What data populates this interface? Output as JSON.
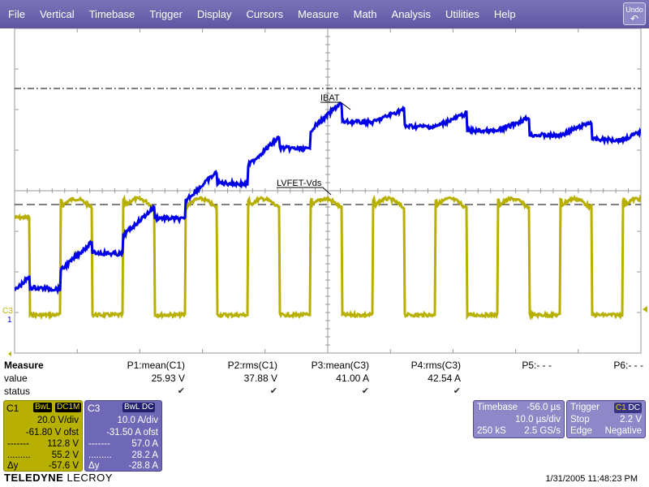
{
  "menu": {
    "items": [
      "File",
      "Vertical",
      "Timebase",
      "Trigger",
      "Display",
      "Cursors",
      "Measure",
      "Math",
      "Analysis",
      "Utilities",
      "Help"
    ],
    "undo_label": "Undo"
  },
  "waveforms": {
    "ibat_label": "IBAT",
    "vds_label": "LVFET-Vds",
    "c3_marker": "C3",
    "c1_marker": "1",
    "colors": {
      "c1": "#b8b000",
      "c3": "#0000e8",
      "grid": "#888888"
    }
  },
  "measure": {
    "title": "Measure",
    "row_value": "value",
    "row_status": "status",
    "params": [
      {
        "name": "P1:mean(C1)",
        "value": "25.93 V",
        "status": "✔"
      },
      {
        "name": "P2:rms(C1)",
        "value": "37.88 V",
        "status": "✔"
      },
      {
        "name": "P3:mean(C3)",
        "value": "41.00 A",
        "status": "✔"
      },
      {
        "name": "P4:rms(C3)",
        "value": "42.54 A",
        "status": "✔"
      },
      {
        "name": "P5:- - -",
        "value": "",
        "status": ""
      },
      {
        "name": "P6:- - -",
        "value": "",
        "status": ""
      }
    ]
  },
  "c1": {
    "name": "C1",
    "tag_bw": "BwL",
    "tag_coupling": "DC1M",
    "vdiv": "20.0 V/div",
    "offset": "-61.80 V ofst",
    "cursor1": "112.8 V",
    "cursor2": "55.2 V",
    "delta_key": "Δy",
    "delta": "-57.6 V"
  },
  "c3": {
    "name": "C3",
    "tag": "BwL DC",
    "vdiv": "10.0 A/div",
    "offset": "-31.50 A ofst",
    "cursor1": "57.0 A",
    "cursor2": "28.2 A",
    "delta_key": "Δy",
    "delta": "-28.8 A"
  },
  "timebase": {
    "label": "Timebase",
    "delay": "-56.0 µs",
    "tdiv": "10.0 µs/div",
    "samples": "250 kS",
    "rate": "2.5 GS/s"
  },
  "trigger": {
    "label": "Trigger",
    "source": "C1",
    "coupling": "DC",
    "mode": "Stop",
    "level": "2.2 V",
    "type": "Edge",
    "slope": "Negative"
  },
  "footer": {
    "brand": "TELEDYNE",
    "brand2": "LECROY",
    "datetime": "1/31/2005 11:48:23 PM"
  }
}
